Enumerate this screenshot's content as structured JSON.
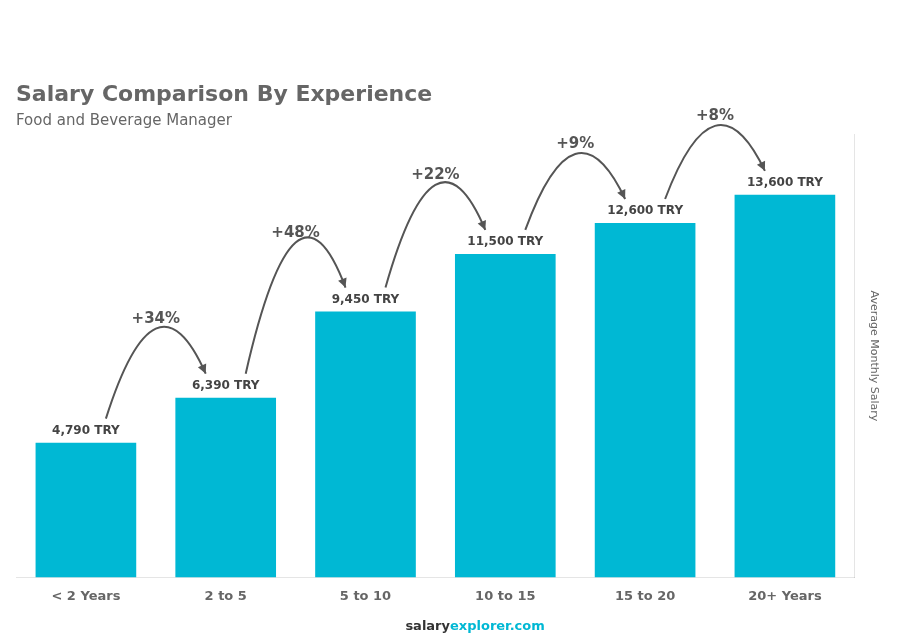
{
  "chart_data": {
    "type": "bar",
    "title": "Salary Comparison By Experience",
    "subtitle": "Food and Beverage Manager",
    "categories": [
      "< 2 Years",
      "2 to 5",
      "5 to 10",
      "10 to 15",
      "15 to 20",
      "20+ Years"
    ],
    "values": [
      4790,
      6390,
      9450,
      11500,
      12600,
      13600
    ],
    "value_labels": [
      "4,790 TRY",
      "6,390 TRY",
      "9,450 TRY",
      "11,500 TRY",
      "12,600 TRY",
      "13,600 TRY"
    ],
    "data_labels": true,
    "annotations": [
      "+34%",
      "+48%",
      "+22%",
      "+9%",
      "+8%"
    ],
    "color": "#00b8d4",
    "ylabel": "Average Monthly Salary",
    "ylim": [
      0,
      15750
    ],
    "grid": false,
    "tick_labels": "x",
    "footer": [
      "salary",
      "explorer.com"
    ]
  }
}
